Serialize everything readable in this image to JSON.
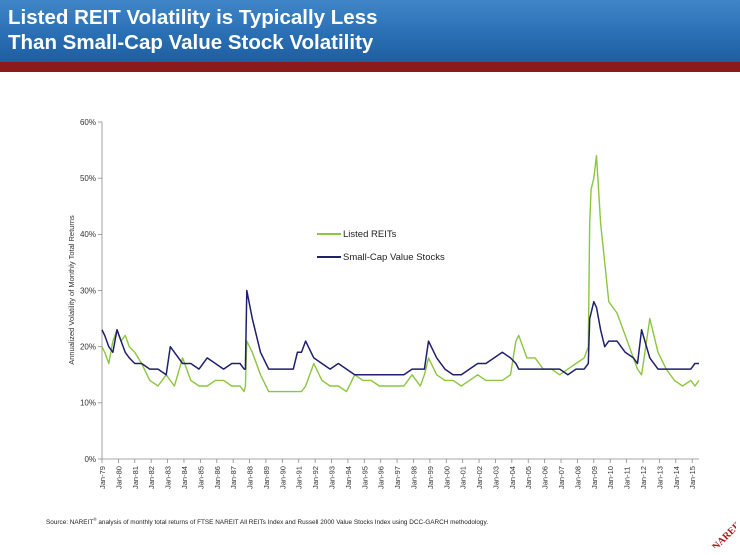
{
  "header": {
    "title_line1": "Listed REIT Volatility is Typically Less",
    "title_line2": "Than Small-Cap Value Stock Volatility"
  },
  "footer": {
    "source_pre": "Source: NAREIT",
    "source_mark": "®",
    "source_post": " analysis of monthly total returns of FTSE NAREIT All REITs Index and Russell 2000 Value Stocks Index using DCC-GARCH methodology."
  },
  "logo": {
    "text": "NAREIT"
  },
  "colors": {
    "header_blue": "#2a6fb4",
    "header_bar": "#8b1a1a",
    "reits": "#8cc63f",
    "smallcap": "#1f1f6e"
  },
  "chart_data": {
    "type": "line",
    "title": "",
    "xlabel": "",
    "ylabel": "Annualized Volatility of Monthly Total Returns",
    "ylim": [
      0,
      60
    ],
    "yticks": [
      "0%",
      "10%",
      "20%",
      "30%",
      "40%",
      "50%",
      "60%"
    ],
    "xlim": [
      "1979-01",
      "2015-06"
    ],
    "xticks": [
      "Jan-79",
      "Jan-80",
      "Jan-81",
      "Jan-82",
      "Jan-83",
      "Jan-84",
      "Jan-85",
      "Jan-86",
      "Jan-87",
      "Jan-88",
      "Jan-89",
      "Jan-90",
      "Jan-91",
      "Jan-92",
      "Jan-93",
      "Jan-94",
      "Jan-95",
      "Jan-96",
      "Jan-97",
      "Jan-98",
      "Jan-99",
      "Jan-00",
      "Jan-01",
      "Jan-02",
      "Jan-03",
      "Jan-04",
      "Jan-05",
      "Jan-06",
      "Jan-07",
      "Jan-08",
      "Jan-09",
      "Jan-10",
      "Jan-11",
      "Jan-12",
      "Jan-13",
      "Jan-14",
      "Jan-15"
    ],
    "grid": false,
    "legend": "center",
    "series": [
      {
        "name": "Listed REITs",
        "color": "#8cc63f",
        "x": [
          "1979-01",
          "1979-03",
          "1979-06",
          "1979-09",
          "1979-12",
          "1980-03",
          "1980-06",
          "1980-09",
          "1981-01",
          "1981-06",
          "1981-12",
          "1982-06",
          "1982-12",
          "1983-03",
          "1983-06",
          "1983-12",
          "1984-06",
          "1984-12",
          "1985-06",
          "1985-12",
          "1986-06",
          "1986-12",
          "1987-06",
          "1987-09",
          "1987-10",
          "1987-11",
          "1988-03",
          "1988-09",
          "1989-03",
          "1989-09",
          "1990-03",
          "1990-09",
          "1990-12",
          "1991-03",
          "1991-06",
          "1991-12",
          "1992-06",
          "1992-12",
          "1993-06",
          "1993-12",
          "1994-06",
          "1994-12",
          "1995-06",
          "1995-12",
          "1996-06",
          "1996-12",
          "1997-06",
          "1997-12",
          "1998-06",
          "1998-09",
          "1998-12",
          "1999-06",
          "1999-12",
          "2000-06",
          "2000-12",
          "2001-06",
          "2001-12",
          "2002-06",
          "2002-12",
          "2003-06",
          "2003-12",
          "2004-04",
          "2004-06",
          "2004-12",
          "2005-06",
          "2005-12",
          "2006-06",
          "2006-12",
          "2007-06",
          "2007-12",
          "2008-06",
          "2008-09",
          "2008-10",
          "2008-11",
          "2009-01",
          "2009-03",
          "2009-06",
          "2009-09",
          "2009-12",
          "2010-06",
          "2010-12",
          "2011-06",
          "2011-09",
          "2011-12",
          "2012-06",
          "2012-12",
          "2013-06",
          "2013-12",
          "2014-06",
          "2014-12",
          "2015-03",
          "2015-06"
        ],
        "values": [
          20,
          19,
          17,
          21,
          23,
          21,
          22,
          20,
          19,
          17,
          14,
          13,
          15,
          14,
          13,
          18,
          14,
          13,
          13,
          14,
          14,
          13,
          13,
          12,
          13,
          21,
          19,
          15,
          12,
          12,
          12,
          12,
          12,
          12,
          13,
          17,
          14,
          13,
          13,
          12,
          15,
          14,
          14,
          13,
          13,
          13,
          13,
          15,
          13,
          15,
          18,
          15,
          14,
          14,
          13,
          14,
          15,
          14,
          14,
          14,
          15,
          21,
          22,
          18,
          18,
          16,
          16,
          15,
          16,
          17,
          18,
          20,
          42,
          48,
          50,
          54,
          42,
          35,
          28,
          26,
          22,
          18,
          16,
          15,
          25,
          19,
          16,
          14,
          13,
          14,
          13,
          14
        ]
      },
      {
        "name": "Small-Cap Value Stocks",
        "color": "#1f1f6e",
        "x": [
          "1979-01",
          "1979-03",
          "1979-06",
          "1979-09",
          "1979-12",
          "1980-03",
          "1980-06",
          "1980-09",
          "1981-01",
          "1981-06",
          "1981-12",
          "1982-06",
          "1982-12",
          "1983-03",
          "1983-06",
          "1983-12",
          "1984-06",
          "1984-12",
          "1985-06",
          "1985-12",
          "1986-06",
          "1986-12",
          "1987-06",
          "1987-09",
          "1987-10",
          "1987-11",
          "1988-03",
          "1988-09",
          "1989-03",
          "1989-09",
          "1990-03",
          "1990-09",
          "1990-12",
          "1991-03",
          "1991-06",
          "1991-12",
          "1992-06",
          "1992-12",
          "1993-06",
          "1993-12",
          "1994-06",
          "1994-12",
          "1995-06",
          "1995-12",
          "1996-06",
          "1996-12",
          "1997-06",
          "1997-12",
          "1998-06",
          "1998-09",
          "1998-12",
          "1999-06",
          "1999-12",
          "2000-06",
          "2000-12",
          "2001-06",
          "2001-12",
          "2002-06",
          "2002-12",
          "2003-06",
          "2003-12",
          "2004-04",
          "2004-06",
          "2004-12",
          "2005-06",
          "2005-12",
          "2006-06",
          "2006-12",
          "2007-06",
          "2007-12",
          "2008-06",
          "2008-09",
          "2008-10",
          "2008-11",
          "2009-01",
          "2009-03",
          "2009-06",
          "2009-09",
          "2009-12",
          "2010-06",
          "2010-12",
          "2011-06",
          "2011-09",
          "2011-12",
          "2012-06",
          "2012-12",
          "2013-06",
          "2013-12",
          "2014-06",
          "2014-12",
          "2015-03",
          "2015-06"
        ],
        "values": [
          23,
          22,
          20,
          19,
          23,
          21,
          19,
          18,
          17,
          17,
          16,
          16,
          15,
          20,
          19,
          17,
          17,
          16,
          18,
          17,
          16,
          17,
          17,
          16,
          16,
          30,
          25,
          19,
          16,
          16,
          16,
          16,
          19,
          19,
          21,
          18,
          17,
          16,
          17,
          16,
          15,
          15,
          15,
          15,
          15,
          15,
          15,
          16,
          16,
          16,
          21,
          18,
          16,
          15,
          15,
          16,
          17,
          17,
          18,
          19,
          18,
          17,
          16,
          16,
          16,
          16,
          16,
          16,
          15,
          16,
          16,
          17,
          25,
          26,
          28,
          27,
          23,
          20,
          21,
          21,
          19,
          18,
          17,
          23,
          18,
          16,
          16,
          16,
          16,
          16,
          17,
          17
        ]
      }
    ]
  }
}
